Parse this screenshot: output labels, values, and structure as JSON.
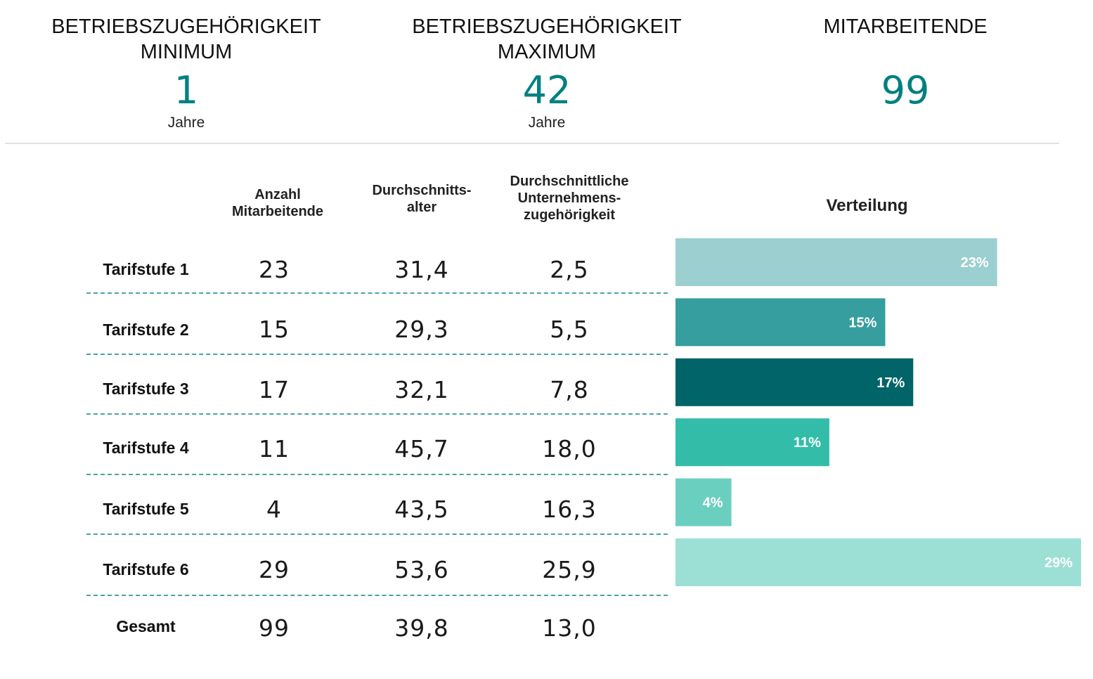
{
  "kpis": {
    "min": {
      "title_line1": "BETRIEBSZUGEHÖRIGKEIT",
      "title_line2": "MINIMUM",
      "value": "1",
      "unit": "Jahre"
    },
    "max": {
      "title_line1": "BETRIEBSZUGEHÖRIGKEIT",
      "title_line2": "MAXIMUM",
      "value": "42",
      "unit": "Jahre"
    },
    "employees": {
      "title_line1": "MITARBEITENDE",
      "value": "99"
    }
  },
  "table": {
    "headers": {
      "count": [
        "Anzahl",
        "Mitarbeitende"
      ],
      "age": [
        "Durchschnitts-",
        "alter"
      ],
      "tenure": [
        "Durchschnittliche",
        "Unternehmens-",
        "zugehörigkeit"
      ],
      "distribution": "Verteilung"
    },
    "rows": [
      {
        "label": "Tarifstufe 1",
        "count": "23",
        "age": "31,4",
        "tenure": "2,5"
      },
      {
        "label": "Tarifstufe 2",
        "count": "15",
        "age": "29,3",
        "tenure": "5,5"
      },
      {
        "label": "Tarifstufe 3",
        "count": "17",
        "age": "32,1",
        "tenure": "7,8"
      },
      {
        "label": "Tarifstufe 4",
        "count": "11",
        "age": "45,7",
        "tenure": "18,0"
      },
      {
        "label": "Tarifstufe 5",
        "count": "4",
        "age": "43,5",
        "tenure": "16,3"
      },
      {
        "label": "Tarifstufe 6",
        "count": "29",
        "age": "53,6",
        "tenure": "25,9"
      }
    ],
    "total": {
      "label": "Gesamt",
      "count": "99",
      "age": "39,8",
      "tenure": "13,0"
    }
  },
  "chart_data": {
    "type": "bar",
    "orientation": "horizontal",
    "title": "Verteilung",
    "categories": [
      "Tarifstufe 1",
      "Tarifstufe 2",
      "Tarifstufe 3",
      "Tarifstufe 4",
      "Tarifstufe 5",
      "Tarifstufe 6"
    ],
    "values": [
      23,
      15,
      17,
      11,
      4,
      29
    ],
    "value_labels": [
      "23%",
      "15%",
      "17%",
      "11%",
      "4%",
      "29%"
    ],
    "colors": [
      "#9bcfd0",
      "#369e9f",
      "#006468",
      "#33bda9",
      "#6bcfc0",
      "#9ce0d5"
    ],
    "xlim": [
      0,
      29
    ]
  },
  "colors": {
    "accent": "#008080",
    "separator": "#4aa3a0",
    "divider": "#e1e1e1"
  }
}
